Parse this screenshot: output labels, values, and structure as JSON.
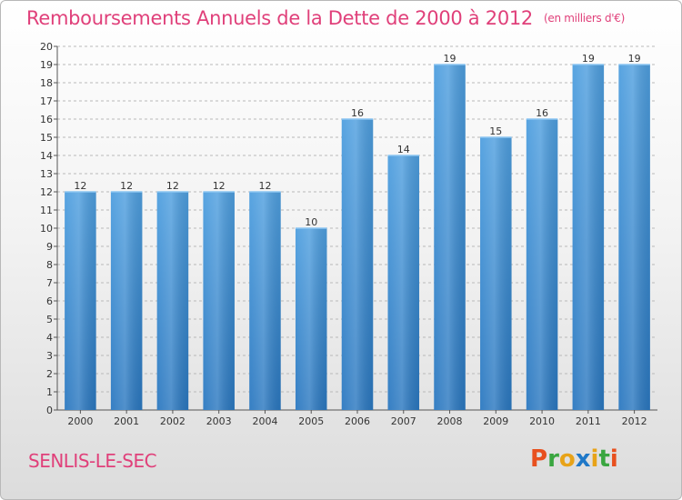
{
  "chart_data": {
    "type": "bar",
    "title": "Remboursements Annuels de la Dette de 2000 à 2012",
    "unit": "(en milliers d'€)",
    "categories": [
      "2000",
      "2001",
      "2002",
      "2003",
      "2004",
      "2005",
      "2006",
      "2007",
      "2008",
      "2009",
      "2010",
      "2011",
      "2012"
    ],
    "values": [
      12,
      12,
      12,
      12,
      12,
      10,
      16,
      14,
      19,
      15,
      16,
      19,
      19
    ],
    "ylim": [
      0,
      20
    ],
    "yticks": [
      0,
      1,
      2,
      3,
      4,
      5,
      6,
      7,
      8,
      9,
      10,
      11,
      12,
      13,
      14,
      15,
      16,
      17,
      18,
      19,
      20
    ],
    "grid": true,
    "bar_color": "#4f9fdf",
    "bar_color_dark": "#2b78c0"
  },
  "footer": {
    "location": "SENLIS-LE-SEC",
    "logo_text": "Proxiti",
    "logo_colors": [
      "#e8501e",
      "#3aa640",
      "#e8a318",
      "#1f78c8",
      "#e8a318",
      "#3aa640",
      "#e8501e"
    ]
  },
  "colors": {
    "accent": "#e0407a"
  }
}
